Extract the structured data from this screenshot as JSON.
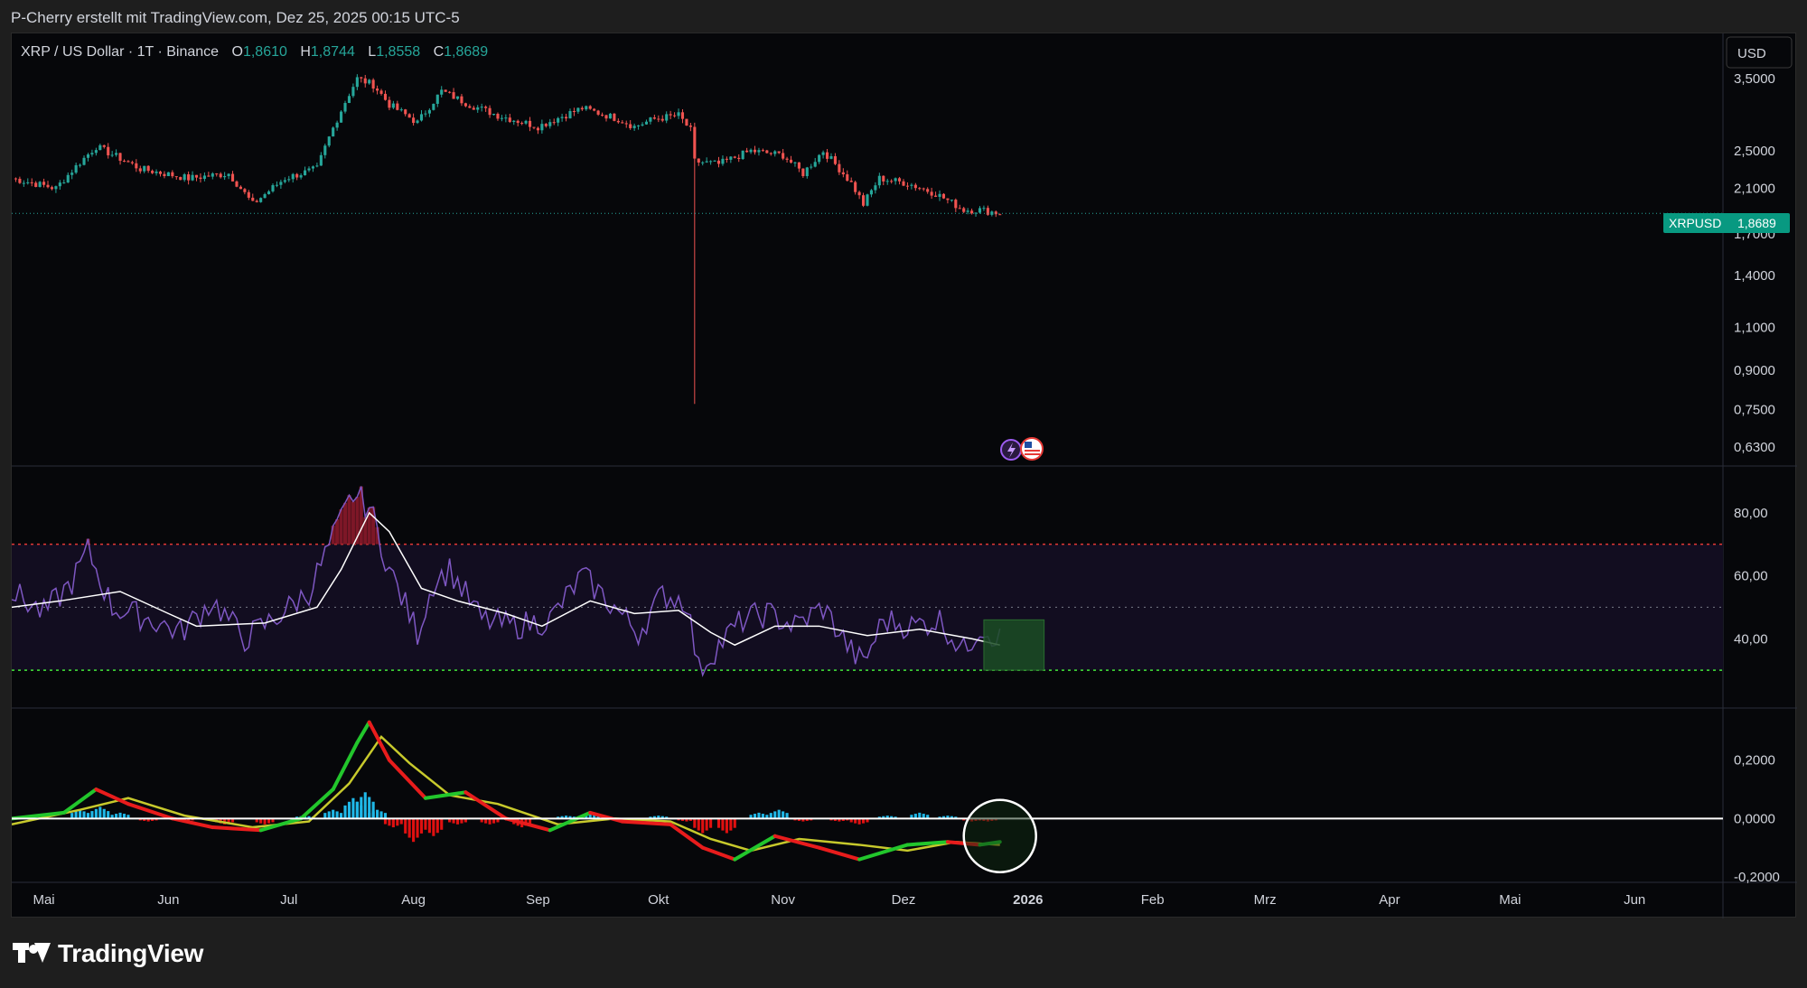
{
  "header": {
    "attribution": "P-Cherry erstellt mit TradingView.com, Dez 25, 2025 00:15 UTC-5"
  },
  "legend": {
    "symbol": "XRP / US Dollar · 1T · Binance",
    "o_label": "O",
    "o_value": "1,8610",
    "h_label": "H",
    "h_value": "1,8744",
    "l_label": "L",
    "l_value": "1,8558",
    "c_label": "C",
    "c_value": "1,8689"
  },
  "currency_button": "USD",
  "price_tag": {
    "symbol": "XRPUSD",
    "value": "1,8689"
  },
  "footer": {
    "brand": "TradingView"
  },
  "colors": {
    "up": "#26a69a",
    "down": "#ef5350",
    "rsi": "#7e57c2",
    "rsi_ma": "#ffffff",
    "macd_line_up": "#22c62c",
    "macd_line_down": "#e81c1c",
    "signal": "#c7c92c",
    "hist_pos": "#1fb8e8",
    "hist_neg": "#e01010",
    "tag_bg": "#089981"
  },
  "chart_data": [
    {
      "type": "candlestick",
      "title": "XRP / US Dollar · 1T · Binance",
      "scale": "log",
      "y_ticks": [
        "3,5000",
        "2,5000",
        "2,1000",
        "1,7000",
        "1,4000",
        "1,1000",
        "0,9000",
        "0,7500",
        "0,6300"
      ],
      "y_tick_values": [
        3.5,
        2.5,
        2.1,
        1.7,
        1.4,
        1.1,
        0.9,
        0.75,
        0.63
      ],
      "last_price": 1.8689,
      "x_ticks": [
        "Mai",
        "Jun",
        "Jul",
        "Aug",
        "Sep",
        "Okt",
        "Nov",
        "Dez",
        "2026",
        "Feb",
        "Mrz",
        "Apr",
        "Mai",
        "Jun"
      ],
      "x_tick_dates": [
        "2025-05-01",
        "2025-06-01",
        "2025-07-01",
        "2025-08-01",
        "2025-09-01",
        "2025-10-01",
        "2025-11-01",
        "2025-12-01",
        "2026-01-01",
        "2026-02-01",
        "2026-03-01",
        "2026-04-01",
        "2026-05-01",
        "2026-06-01"
      ],
      "x_range": [
        "2025-04-23",
        "2026-06-23"
      ],
      "data_range": [
        "2025-04-23",
        "2025-12-25"
      ],
      "close_keypoints": [
        [
          "2025-04-23",
          2.2
        ],
        [
          "2025-05-04",
          2.1
        ],
        [
          "2025-05-14",
          2.55
        ],
        [
          "2025-05-25",
          2.3
        ],
        [
          "2025-06-06",
          2.2
        ],
        [
          "2025-06-16",
          2.25
        ],
        [
          "2025-06-22",
          1.95
        ],
        [
          "2025-06-30",
          2.2
        ],
        [
          "2025-07-08",
          2.3
        ],
        [
          "2025-07-13",
          2.9
        ],
        [
          "2025-07-18",
          3.5
        ],
        [
          "2025-07-22",
          3.4
        ],
        [
          "2025-07-26",
          3.1
        ],
        [
          "2025-08-02",
          2.85
        ],
        [
          "2025-08-08",
          3.3
        ],
        [
          "2025-08-15",
          3.1
        ],
        [
          "2025-08-22",
          2.95
        ],
        [
          "2025-09-01",
          2.8
        ],
        [
          "2025-09-12",
          3.05
        ],
        [
          "2025-09-21",
          2.9
        ],
        [
          "2025-09-25",
          2.8
        ],
        [
          "2025-09-30",
          2.9
        ],
        [
          "2025-10-06",
          2.95
        ],
        [
          "2025-10-09",
          2.75
        ],
        [
          "2025-10-10",
          2.38
        ],
        [
          "2025-10-16",
          2.35
        ],
        [
          "2025-10-24",
          2.5
        ],
        [
          "2025-11-01",
          2.45
        ],
        [
          "2025-11-06",
          2.25
        ],
        [
          "2025-11-11",
          2.5
        ],
        [
          "2025-11-18",
          2.15
        ],
        [
          "2025-11-21",
          1.95
        ],
        [
          "2025-11-25",
          2.2
        ],
        [
          "2025-12-02",
          2.15
        ],
        [
          "2025-12-09",
          2.05
        ],
        [
          "2025-12-16",
          1.9
        ],
        [
          "2025-12-20",
          1.9
        ],
        [
          "2025-12-25",
          1.87
        ]
      ],
      "spike": {
        "date": "2025-10-10",
        "low": 0.77
      }
    },
    {
      "type": "line",
      "title": "RSI",
      "y_ticks": [
        "80,00",
        "60,00",
        "40,00"
      ],
      "y_tick_values": [
        80,
        60,
        40
      ],
      "y_range": [
        22,
        92
      ],
      "overbought": 70,
      "midline": 50,
      "oversold": 30,
      "series": [
        {
          "role": "rsi",
          "points": [
            [
              "2025-04-23",
              55
            ],
            [
              "2025-05-01",
              48
            ],
            [
              "2025-05-08",
              58
            ],
            [
              "2025-05-12",
              68
            ],
            [
              "2025-05-18",
              50
            ],
            [
              "2025-05-28",
              46
            ],
            [
              "2025-06-04",
              42
            ],
            [
              "2025-06-12",
              52
            ],
            [
              "2025-06-20",
              40
            ],
            [
              "2025-06-28",
              47
            ],
            [
              "2025-07-06",
              55
            ],
            [
              "2025-07-12",
              72
            ],
            [
              "2025-07-17",
              86
            ],
            [
              "2025-07-21",
              82
            ],
            [
              "2025-07-26",
              62
            ],
            [
              "2025-08-02",
              42
            ],
            [
              "2025-08-06",
              58
            ],
            [
              "2025-08-10",
              62
            ],
            [
              "2025-08-18",
              46
            ],
            [
              "2025-08-26",
              44
            ],
            [
              "2025-09-04",
              46
            ],
            [
              "2025-09-12",
              60
            ],
            [
              "2025-09-20",
              50
            ],
            [
              "2025-09-26",
              42
            ],
            [
              "2025-10-02",
              54
            ],
            [
              "2025-10-08",
              52
            ],
            [
              "2025-10-11",
              30
            ],
            [
              "2025-10-16",
              38
            ],
            [
              "2025-10-22",
              46
            ],
            [
              "2025-10-28",
              48
            ],
            [
              "2025-11-04",
              44
            ],
            [
              "2025-11-11",
              50
            ],
            [
              "2025-11-18",
              36
            ],
            [
              "2025-11-21",
              32
            ],
            [
              "2025-11-26",
              46
            ],
            [
              "2025-12-03",
              44
            ],
            [
              "2025-12-10",
              46
            ],
            [
              "2025-12-16",
              36
            ],
            [
              "2025-12-20",
              44
            ],
            [
              "2025-12-25",
              40
            ]
          ]
        },
        {
          "role": "rsi_ma",
          "points": [
            [
              "2025-04-23",
              50
            ],
            [
              "2025-05-05",
              52
            ],
            [
              "2025-05-20",
              55
            ],
            [
              "2025-06-01",
              48
            ],
            [
              "2025-06-08",
              44
            ],
            [
              "2025-06-25",
              45
            ],
            [
              "2025-07-08",
              50
            ],
            [
              "2025-07-14",
              62
            ],
            [
              "2025-07-21",
              80
            ],
            [
              "2025-07-26",
              74
            ],
            [
              "2025-08-03",
              56
            ],
            [
              "2025-08-12",
              52
            ],
            [
              "2025-08-24",
              48
            ],
            [
              "2025-09-02",
              44
            ],
            [
              "2025-09-14",
              52
            ],
            [
              "2025-09-25",
              48
            ],
            [
              "2025-10-06",
              49
            ],
            [
              "2025-10-14",
              42
            ],
            [
              "2025-10-20",
              38
            ],
            [
              "2025-10-30",
              44
            ],
            [
              "2025-11-10",
              44
            ],
            [
              "2025-11-22",
              41
            ],
            [
              "2025-12-05",
              43
            ],
            [
              "2025-12-18",
              40
            ],
            [
              "2025-12-25",
              38
            ]
          ]
        }
      ]
    },
    {
      "type": "line+bar",
      "title": "MACD",
      "y_ticks": [
        "0,2000",
        "0,0000",
        "-0,2000"
      ],
      "y_tick_values": [
        0.2,
        0.0,
        -0.2
      ],
      "y_range": [
        -0.2,
        0.36
      ],
      "series": [
        {
          "role": "macd",
          "points": [
            [
              "2025-04-23",
              0.0
            ],
            [
              "2025-05-06",
              0.02
            ],
            [
              "2025-05-14",
              0.1
            ],
            [
              "2025-05-22",
              0.05
            ],
            [
              "2025-06-02",
              0.0
            ],
            [
              "2025-06-12",
              -0.03
            ],
            [
              "2025-06-24",
              -0.04
            ],
            [
              "2025-07-04",
              0.0
            ],
            [
              "2025-07-12",
              0.1
            ],
            [
              "2025-07-18",
              0.26
            ],
            [
              "2025-07-21",
              0.33
            ],
            [
              "2025-07-26",
              0.2
            ],
            [
              "2025-08-04",
              0.07
            ],
            [
              "2025-08-14",
              0.09
            ],
            [
              "2025-08-24",
              0.0
            ],
            [
              "2025-09-04",
              -0.04
            ],
            [
              "2025-09-14",
              0.02
            ],
            [
              "2025-09-22",
              -0.01
            ],
            [
              "2025-10-04",
              -0.02
            ],
            [
              "2025-10-12",
              -0.1
            ],
            [
              "2025-10-20",
              -0.14
            ],
            [
              "2025-10-30",
              -0.06
            ],
            [
              "2025-11-10",
              -0.1
            ],
            [
              "2025-11-20",
              -0.14
            ],
            [
              "2025-12-02",
              -0.09
            ],
            [
              "2025-12-12",
              -0.08
            ],
            [
              "2025-12-20",
              -0.09
            ],
            [
              "2025-12-25",
              -0.08
            ]
          ]
        },
        {
          "role": "signal",
          "points": [
            [
              "2025-04-23",
              -0.02
            ],
            [
              "2025-05-10",
              0.03
            ],
            [
              "2025-05-22",
              0.07
            ],
            [
              "2025-06-05",
              0.01
            ],
            [
              "2025-06-22",
              -0.03
            ],
            [
              "2025-07-06",
              -0.01
            ],
            [
              "2025-07-16",
              0.12
            ],
            [
              "2025-07-24",
              0.28
            ],
            [
              "2025-07-31",
              0.19
            ],
            [
              "2025-08-10",
              0.08
            ],
            [
              "2025-08-22",
              0.05
            ],
            [
              "2025-09-06",
              -0.02
            ],
            [
              "2025-09-20",
              0.0
            ],
            [
              "2025-10-04",
              -0.01
            ],
            [
              "2025-10-14",
              -0.07
            ],
            [
              "2025-10-24",
              -0.11
            ],
            [
              "2025-11-05",
              -0.07
            ],
            [
              "2025-11-20",
              -0.09
            ],
            [
              "2025-12-02",
              -0.11
            ],
            [
              "2025-12-14",
              -0.08
            ],
            [
              "2025-12-25",
              -0.09
            ]
          ]
        },
        {
          "role": "histogram",
          "bars": [
            [
              "2025-05-10",
              0.03
            ],
            [
              "2025-05-15",
              0.04
            ],
            [
              "2025-05-20",
              0.02
            ],
            [
              "2025-05-27",
              -0.01
            ],
            [
              "2025-06-05",
              -0.01
            ],
            [
              "2025-06-15",
              -0.02
            ],
            [
              "2025-06-25",
              -0.02
            ],
            [
              "2025-07-05",
              0.01
            ],
            [
              "2025-07-12",
              0.03
            ],
            [
              "2025-07-17",
              0.07
            ],
            [
              "2025-07-20",
              0.09
            ],
            [
              "2025-07-23",
              0.03
            ],
            [
              "2025-07-27",
              -0.03
            ],
            [
              "2025-08-01",
              -0.08
            ],
            [
              "2025-08-06",
              -0.06
            ],
            [
              "2025-08-12",
              -0.02
            ],
            [
              "2025-08-20",
              -0.02
            ],
            [
              "2025-08-28",
              -0.03
            ],
            [
              "2025-09-08",
              0.01
            ],
            [
              "2025-09-14",
              0.02
            ],
            [
              "2025-09-22",
              -0.01
            ],
            [
              "2025-10-01",
              0.01
            ],
            [
              "2025-10-08",
              -0.01
            ],
            [
              "2025-10-12",
              -0.05
            ],
            [
              "2025-10-18",
              -0.05
            ],
            [
              "2025-10-26",
              0.02
            ],
            [
              "2025-10-31",
              0.03
            ],
            [
              "2025-11-06",
              -0.01
            ],
            [
              "2025-11-15",
              -0.01
            ],
            [
              "2025-11-20",
              -0.02
            ],
            [
              "2025-11-27",
              0.01
            ],
            [
              "2025-12-05",
              0.02
            ],
            [
              "2025-12-12",
              0.01
            ],
            [
              "2025-12-18",
              -0.01
            ],
            [
              "2025-12-22",
              -0.01
            ]
          ]
        }
      ]
    }
  ]
}
